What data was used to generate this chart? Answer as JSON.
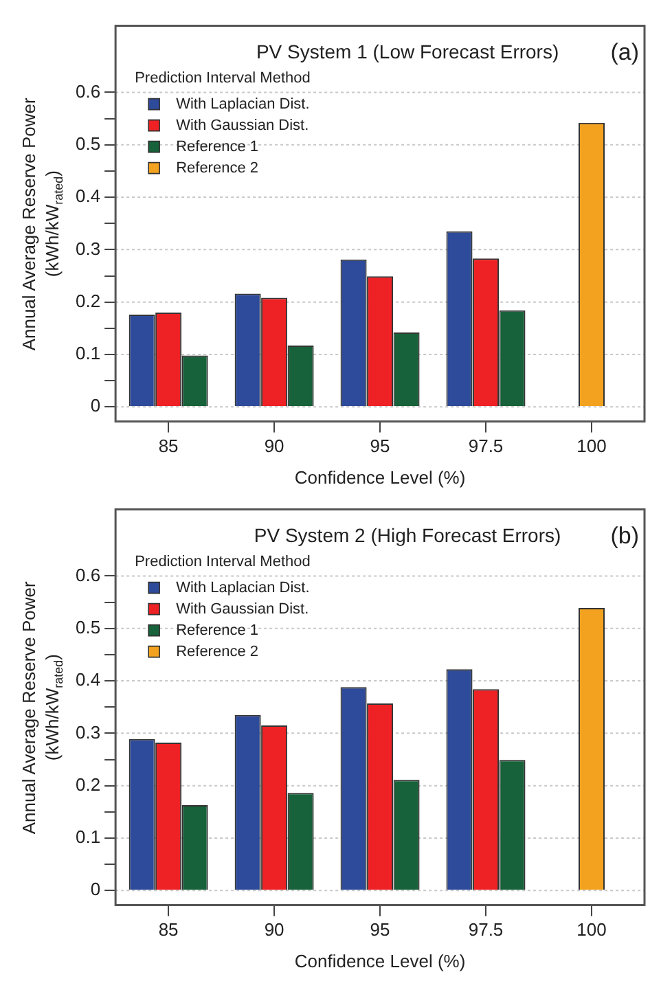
{
  "chart_data": [
    {
      "type": "bar",
      "title": "PV System 1 (Low Forecast Errors)",
      "xlabel": "Confidence Level (%)",
      "ylabel": "Annual Average Reserve Power\n(kWh/kW$_{rated}$)",
      "legend_title": "Prediction Interval Method",
      "annotations": [
        "(a)"
      ],
      "categories": [
        "85",
        "90",
        "95",
        "97.5",
        "100"
      ],
      "series": [
        {
          "name": "With Laplacian Dist.",
          "color": "#2e4b9b",
          "values": [
            0.176,
            0.216,
            0.281,
            0.335,
            null
          ]
        },
        {
          "name": "With Gaussian Dist.",
          "color": "#ee2124",
          "values": [
            0.18,
            0.208,
            0.249,
            0.283,
            null
          ]
        },
        {
          "name": "Reference 1",
          "color": "#17623a",
          "values": [
            0.098,
            0.117,
            0.142,
            0.184,
            null
          ]
        },
        {
          "name": "Reference 2",
          "color": "#f3a21f",
          "values": [
            null,
            null,
            null,
            null,
            0.542
          ]
        }
      ],
      "ylim": [
        -0.028,
        0.727
      ],
      "yticks": [
        0,
        {
          "value": 0.05,
          "label": null
        },
        0.1,
        {
          "value": 0.15,
          "label": null
        },
        0.2,
        {
          "value": 0.25,
          "label": null
        },
        0.3,
        {
          "value": 0.35,
          "label": null
        },
        0.4,
        {
          "value": 0.45,
          "label": null
        },
        0.5,
        {
          "value": 0.55,
          "label": null
        },
        0.6
      ],
      "grid": "y",
      "legend": "top left"
    },
    {
      "type": "bar",
      "title": "PV System 2 (High Forecast Errors)",
      "xlabel": "Confidence Level (%)",
      "ylabel": "Annual Average Reserve Power\n(kWh/kW$_{rated}$)",
      "legend_title": "Prediction Interval Method",
      "annotations": [
        "(b)"
      ],
      "categories": [
        "85",
        "90",
        "95",
        "97.5",
        "100"
      ],
      "series": [
        {
          "name": "With Laplacian Dist.",
          "color": "#2e4b9b",
          "values": [
            0.289,
            0.335,
            0.388,
            0.422,
            null
          ]
        },
        {
          "name": "With Gaussian Dist.",
          "color": "#ee2124",
          "values": [
            0.282,
            0.315,
            0.357,
            0.384,
            null
          ]
        },
        {
          "name": "Reference 1",
          "color": "#17623a",
          "values": [
            0.163,
            0.186,
            0.211,
            0.249,
            null
          ]
        },
        {
          "name": "Reference 2",
          "color": "#f3a21f",
          "values": [
            null,
            null,
            null,
            null,
            0.539
          ]
        }
      ],
      "ylim": [
        -0.028,
        0.727
      ],
      "yticks": [
        0,
        {
          "value": 0.05,
          "label": null
        },
        0.1,
        {
          "value": 0.15,
          "label": null
        },
        0.2,
        {
          "value": 0.25,
          "label": null
        },
        0.3,
        {
          "value": 0.35,
          "label": null
        },
        0.4,
        {
          "value": 0.45,
          "label": null
        },
        0.5,
        {
          "value": 0.55,
          "label": null
        },
        0.6
      ],
      "grid": "y",
      "legend": "top left"
    }
  ]
}
